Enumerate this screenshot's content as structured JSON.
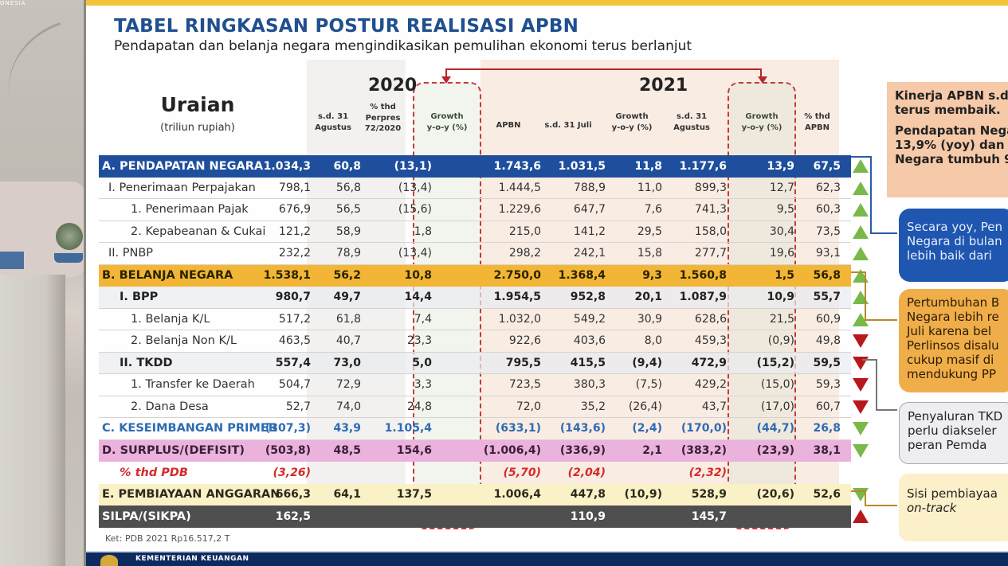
{
  "background": {
    "brand_text": "ONESIA"
  },
  "slide": {
    "title": "TABEL RINGKASAN POSTUR REALISASI APBN",
    "subtitle": "Pendapatan dan belanja negara mengindikasikan pemulihan ekonomi terus berlanjut",
    "note": "Ket: PDB 2021 Rp16.517,2 T",
    "footer_text": "KEMENTERIAN KEUANGAN"
  },
  "table": {
    "header": {
      "uraian": "Uraian",
      "unit": "(triliun rupiah)",
      "year_2020": "2020",
      "year_2021": "2021",
      "columns": [
        "s.d. 31\nAgustus",
        "% thd\nPerpres\n72/2020",
        "Growth\ny-o-y (%)",
        "APBN",
        "s.d. 31 Juli",
        "Growth\ny-o-y (%)",
        "s.d. 31\nAgustus",
        "Growth\ny-o-y (%)",
        "% thd\nAPBN"
      ]
    },
    "rows": [
      {
        "label": "A. PENDAPATAN NEGARA",
        "style": "blue",
        "values": [
          "1.034,3",
          "60,8",
          "(13,1)",
          "1.743,6",
          "1.031,5",
          "11,8",
          "1.177,6",
          "13,9",
          "67,5"
        ],
        "trend": "up-green"
      },
      {
        "label": "I.   Penerimaan Perpajakan",
        "style": "",
        "indent": 12,
        "values": [
          "798,1",
          "56,8",
          "(13,4)",
          "1.444,5",
          "788,9",
          "11,0",
          "899,3",
          "12,7",
          "62,3"
        ],
        "trend": "up-green"
      },
      {
        "label": "1.  Penerimaan Pajak",
        "style": "",
        "indent": 40,
        "values": [
          "676,9",
          "56,5",
          "(15,6)",
          "1.229,6",
          "647,7",
          "7,6",
          "741,3",
          "9,5",
          "60,3"
        ],
        "trend": "up-green"
      },
      {
        "label": "2.  Kepabeanan & Cukai",
        "style": "",
        "indent": 40,
        "values": [
          "121,2",
          "58,9",
          "1,8",
          "215,0",
          "141,2",
          "29,5",
          "158,0",
          "30,4",
          "73,5"
        ],
        "trend": "up-green"
      },
      {
        "label": "II.  PNBP",
        "style": "",
        "indent": 12,
        "values": [
          "232,2",
          "78,9",
          "(13,4)",
          "298,2",
          "242,1",
          "15,8",
          "277,7",
          "19,6",
          "93,1"
        ],
        "trend": "up-green"
      },
      {
        "label": "B. BELANJA NEGARA",
        "style": "orange",
        "values": [
          "1.538,1",
          "56,2",
          "10,8",
          "2.750,0",
          "1.368,4",
          "9,3",
          "1.560,8",
          "1,5",
          "56,8"
        ],
        "trend": "up-green"
      },
      {
        "label": "I. BPP",
        "style": "bold",
        "indent": 26,
        "values": [
          "980,7",
          "49,7",
          "14,4",
          "1.954,5",
          "952,8",
          "20,1",
          "1.087,9",
          "10,9",
          "55,7"
        ],
        "trend": "up-green"
      },
      {
        "label": "1.  Belanja K/L",
        "style": "",
        "indent": 40,
        "values": [
          "517,2",
          "61,8",
          "7,4",
          "1.032,0",
          "549,2",
          "30,9",
          "628,6",
          "21,5",
          "60,9"
        ],
        "trend": "up-green"
      },
      {
        "label": "2.  Belanja Non K/L",
        "style": "",
        "indent": 40,
        "values": [
          "463,5",
          "40,7",
          "23,3",
          "922,6",
          "403,6",
          "8,0",
          "459,3",
          "(0,9)",
          "49,8"
        ],
        "trend": "down-red"
      },
      {
        "label": "II. TKDD",
        "style": "bold",
        "indent": 26,
        "values": [
          "557,4",
          "73,0",
          "5,0",
          "795,5",
          "415,5",
          "(9,4)",
          "472,9",
          "(15,2)",
          "59,5"
        ],
        "trend": "down-red"
      },
      {
        "label": "1.  Transfer ke Daerah",
        "style": "",
        "indent": 40,
        "values": [
          "504,7",
          "72,9",
          "3,3",
          "723,5",
          "380,3",
          "(7,5)",
          "429,2",
          "(15,0)",
          "59,3"
        ],
        "trend": "down-red"
      },
      {
        "label": "2.  Dana Desa",
        "style": "",
        "indent": 40,
        "values": [
          "52,7",
          "74,0",
          "24,8",
          "72,0",
          "35,2",
          "(26,4)",
          "43,7",
          "(17,0)",
          "60,7"
        ],
        "trend": "down-red"
      },
      {
        "label": "C. KESEIMBANGAN PRIMER",
        "style": "primer",
        "values": [
          "(307,3)",
          "43,9",
          "1.105,4",
          "(633,1)",
          "(143,6)",
          "(2,4)",
          "(170,0)",
          "(44,7)",
          "26,8"
        ],
        "trend": "down-green"
      },
      {
        "label": "D. SURPLUS/(DEFISIT)",
        "style": "pink",
        "values": [
          "(503,8)",
          "48,5",
          "154,6",
          "(1.006,4)",
          "(336,9)",
          "2,1",
          "(383,2)",
          "(23,9)",
          "38,1"
        ],
        "trend": "down-green"
      },
      {
        "label": "% thd PDB",
        "style": "pdb",
        "indent": 26,
        "values": [
          "(3,26)",
          "",
          "",
          "(5,70)",
          "(2,04)",
          "",
          "(2,32)",
          "",
          ""
        ],
        "trend": ""
      },
      {
        "label": "E. PEMBIAYAAN ANGGARAN",
        "style": "cream",
        "values": [
          "666,3",
          "64,1",
          "137,5",
          "1.006,4",
          "447,8",
          "(10,9)",
          "528,9",
          "(20,6)",
          "52,6"
        ],
        "trend": "down-green"
      },
      {
        "label": "SILPA/(SIKPA)",
        "style": "dark",
        "values": [
          "162,5",
          "",
          "",
          "",
          "110,9",
          "",
          "145,7",
          "",
          ""
        ],
        "trend": "up-red"
      }
    ]
  },
  "callouts": {
    "c1_line1": "Kinerja APBN s.d",
    "c1_line2": "terus membaik.",
    "c1_line3": "Pendapatan Nega",
    "c1_line4": "13,9% (yoy) dan B",
    "c1_line5": "Negara tumbuh 9",
    "c2_line1": "Secara yoy, Pen",
    "c2_line2": "Negara di bulan",
    "c2_line3": "lebih baik dari",
    "c3_line1": "Pertumbuhan B",
    "c3_line2": "Negara lebih re",
    "c3_line3": "Juli karena bel",
    "c3_line4": "Perlinsos disalu",
    "c3_line5": "cukup masif di",
    "c3_line6": "mendukung PP",
    "c4_line1": "Penyaluran TKD",
    "c4_line2": "perlu diakseler",
    "c4_line3": "peran Pemda",
    "c5_line1": "Sisi pembiayaa",
    "c5_line2": "on-track"
  },
  "colors": {
    "title_blue": "#1f4f8f",
    "row_blue": "#1f4f9c",
    "row_orange": "#f2b535",
    "row_pink": "#ebb2dd",
    "row_cream": "#fbf1c6",
    "row_dark": "#4f4f4f",
    "trend_green": "#78b94a",
    "trend_red": "#b8181c",
    "dashed_red": "#c6393a"
  }
}
